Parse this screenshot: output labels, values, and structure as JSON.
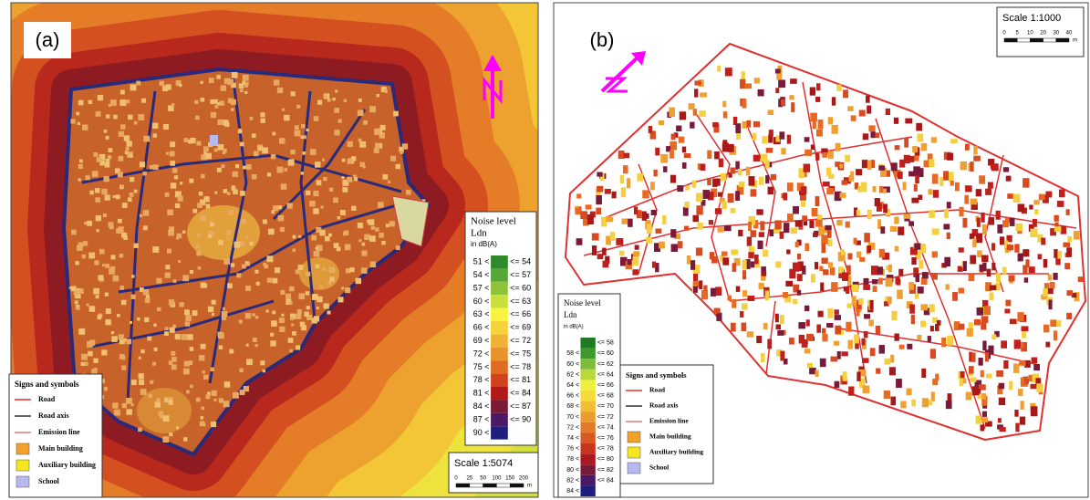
{
  "panel_a": {
    "label": "(a)",
    "noise_legend": {
      "title": "Noise level",
      "subtitle": "Ldn",
      "unit": "in dB(A)",
      "rows": [
        {
          "low": "51 <",
          "high": "<= 54",
          "color": "#2f8a2c"
        },
        {
          "low": "54 <",
          "high": "<= 57",
          "color": "#55a836"
        },
        {
          "low": "57 <",
          "high": "<= 60",
          "color": "#8fc43a"
        },
        {
          "low": "60 <",
          "high": "<= 63",
          "color": "#c9df3c"
        },
        {
          "low": "63 <",
          "high": "<= 66",
          "color": "#f6f43e"
        },
        {
          "low": "66 <",
          "high": "<= 69",
          "color": "#f5d43a"
        },
        {
          "low": "69 <",
          "high": "<= 72",
          "color": "#f0b232"
        },
        {
          "low": "72 <",
          "high": "<= 75",
          "color": "#e9922b"
        },
        {
          "low": "75 <",
          "high": "<= 78",
          "color": "#e06c24"
        },
        {
          "low": "78 <",
          "high": "<= 81",
          "color": "#d0441d"
        },
        {
          "low": "81 <",
          "high": "<= 84",
          "color": "#b01a1a"
        },
        {
          "low": "84 <",
          "high": "<= 87",
          "color": "#7a1a34"
        },
        {
          "low": "87 <",
          "high": "<= 90",
          "color": "#4a1a62"
        },
        {
          "low": "90 <",
          "high": null,
          "color": "#1e1e7c"
        }
      ]
    },
    "symbols_legend": {
      "title": "Signs and symbols",
      "items": [
        "Road",
        "Road axis",
        "Emission line",
        "Main building",
        "Auxiliary building",
        "School"
      ]
    },
    "scale": {
      "title": "Scale 1:5074",
      "ticks": [
        "0",
        "25",
        "50",
        "100",
        "150",
        "200"
      ],
      "unit": "m"
    }
  },
  "panel_b": {
    "label": "(b)",
    "noise_legend": {
      "title": "Noise level",
      "subtitle": "Ldn",
      "unit": "in dB(A)",
      "rows": [
        {
          "low": null,
          "high": "<= 58",
          "color": "#1f7a24"
        },
        {
          "low": "58 <",
          "high": "<= 60",
          "color": "#3f9a2e"
        },
        {
          "low": "60 <",
          "high": "<= 62",
          "color": "#7cbc38"
        },
        {
          "low": "62 <",
          "high": "<= 64",
          "color": "#b8d83c"
        },
        {
          "low": "64 <",
          "high": "<= 66",
          "color": "#eef03e"
        },
        {
          "low": "66 <",
          "high": "<= 68",
          "color": "#f6dc3a"
        },
        {
          "low": "68 <",
          "high": "<= 70",
          "color": "#f2bc34"
        },
        {
          "low": "70 <",
          "high": "<= 72",
          "color": "#ec9c2e"
        },
        {
          "low": "72 <",
          "high": "<= 74",
          "color": "#e47a28"
        },
        {
          "low": "74 <",
          "high": "<= 76",
          "color": "#d85822"
        },
        {
          "low": "76 <",
          "high": "<= 78",
          "color": "#c8341c"
        },
        {
          "low": "78 <",
          "high": "<= 80",
          "color": "#a81a1e"
        },
        {
          "low": "80 <",
          "high": "<= 82",
          "color": "#7a1a3a"
        },
        {
          "low": "82 <",
          "high": "<= 84",
          "color": "#4a1a66"
        },
        {
          "low": "84 <",
          "high": null,
          "color": "#1e1e7c"
        }
      ]
    },
    "symbols_legend": {
      "title": "Signs and symbols",
      "items": [
        "Road",
        "Road axis",
        "Emission line",
        "Main building",
        "Auxiliary building",
        "School"
      ]
    },
    "scale": {
      "title": "Scale 1:1000",
      "ticks": [
        "0",
        "5",
        "10",
        "20",
        "30",
        "40"
      ],
      "unit": "m"
    }
  }
}
